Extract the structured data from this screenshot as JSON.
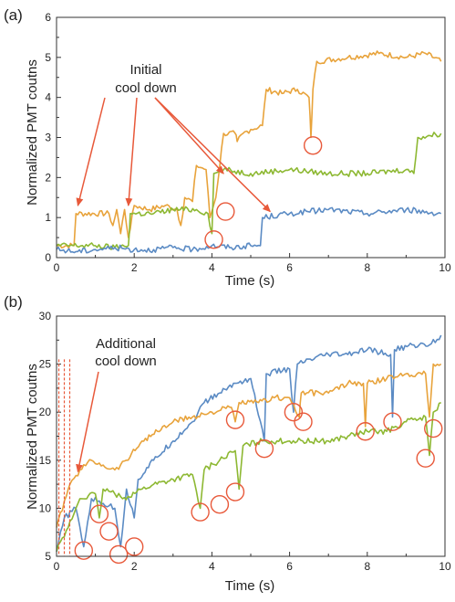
{
  "chart_data": [
    {
      "type": "line",
      "panel_label": "(a)",
      "xlabel": "Time (s)",
      "ylabel": "Normalized PMT coutns",
      "xlim": [
        0,
        10
      ],
      "ylim": [
        0,
        6
      ],
      "x_ticks": [
        "0",
        "2",
        "4",
        "6",
        "8",
        "10"
      ],
      "y_ticks": [
        "0",
        "1",
        "2",
        "3",
        "4",
        "5",
        "6"
      ],
      "annotation": {
        "text_lines": [
          "Initial",
          "cool down"
        ]
      },
      "series": [
        {
          "color": "#E8A33B",
          "points": [
            [
              0,
              0.3
            ],
            [
              0.45,
              0.3
            ],
            [
              0.5,
              1.1
            ],
            [
              1.35,
              1.1
            ],
            [
              1.45,
              0.8
            ],
            [
              1.55,
              1.2
            ],
            [
              1.65,
              0.6
            ],
            [
              1.75,
              1.2
            ],
            [
              1.85,
              0.5
            ],
            [
              2.0,
              1.3
            ],
            [
              2.4,
              1.2
            ],
            [
              2.8,
              1.3
            ],
            [
              3.1,
              1.2
            ],
            [
              3.2,
              0.8
            ],
            [
              3.3,
              1.5
            ],
            [
              3.5,
              1.4
            ],
            [
              3.6,
              2.3
            ],
            [
              3.85,
              2.2
            ],
            [
              3.95,
              1.0
            ],
            [
              4.1,
              1.5
            ],
            [
              4.3,
              3.1
            ],
            [
              4.6,
              3.1
            ],
            [
              4.65,
              2.9
            ],
            [
              4.8,
              3.1
            ],
            [
              5.0,
              3.2
            ],
            [
              5.3,
              3.3
            ],
            [
              5.4,
              4.2
            ],
            [
              5.8,
              4.1
            ],
            [
              6.2,
              4.2
            ],
            [
              6.5,
              4.0
            ],
            [
              6.55,
              3.0
            ],
            [
              6.6,
              4.2
            ],
            [
              6.7,
              4.9
            ],
            [
              7.5,
              5.0
            ],
            [
              8.3,
              5.1
            ],
            [
              9.0,
              5.0
            ],
            [
              9.5,
              5.1
            ],
            [
              9.9,
              4.9
            ]
          ]
        },
        {
          "color": "#8DB832",
          "points": [
            [
              0,
              0.3
            ],
            [
              1.0,
              0.3
            ],
            [
              1.5,
              0.25
            ],
            [
              1.85,
              0.3
            ],
            [
              1.9,
              1.1
            ],
            [
              2.5,
              1.1
            ],
            [
              3.0,
              1.2
            ],
            [
              3.6,
              1.2
            ],
            [
              3.9,
              1.1
            ],
            [
              4.0,
              0.6
            ],
            [
              4.05,
              2.1
            ],
            [
              4.3,
              2.2
            ],
            [
              5.0,
              2.1
            ],
            [
              6.0,
              2.2
            ],
            [
              7.0,
              2.1
            ],
            [
              8.0,
              2.1
            ],
            [
              9.0,
              2.2
            ],
            [
              9.2,
              2.1
            ],
            [
              9.3,
              3.0
            ],
            [
              9.9,
              3.1
            ]
          ]
        },
        {
          "color": "#5B8BC4",
          "points": [
            [
              0,
              0.2
            ],
            [
              0.5,
              0.15
            ],
            [
              1.0,
              0.2
            ],
            [
              1.5,
              0.25
            ],
            [
              2.0,
              0.2
            ],
            [
              2.5,
              0.2
            ],
            [
              3.0,
              0.25
            ],
            [
              3.5,
              0.2
            ],
            [
              4.0,
              0.3
            ],
            [
              4.5,
              0.25
            ],
            [
              5.0,
              0.3
            ],
            [
              5.25,
              0.3
            ],
            [
              5.3,
              1.0
            ],
            [
              6.0,
              1.1
            ],
            [
              7.0,
              1.2
            ],
            [
              8.0,
              1.1
            ],
            [
              9.0,
              1.2
            ],
            [
              9.9,
              1.1
            ]
          ]
        }
      ],
      "circles": [
        [
          4.35,
          1.15
        ],
        [
          4.05,
          0.45
        ],
        [
          6.6,
          2.8
        ]
      ],
      "arrows": [
        [
          0.55,
          1.3
        ],
        [
          1.85,
          1.3
        ],
        [
          4.3,
          2.1
        ],
        [
          5.5,
          1.15
        ]
      ]
    },
    {
      "type": "line",
      "panel_label": "(b)",
      "xlabel": "Time (s)",
      "ylabel": "Normalized PMT coutns",
      "xlim": [
        0,
        10
      ],
      "ylim": [
        5,
        30
      ],
      "x_ticks": [
        "0",
        "2",
        "4",
        "6",
        "8",
        "10"
      ],
      "y_ticks": [
        "5",
        "10",
        "15",
        "20",
        "25",
        "30"
      ],
      "annotation": {
        "text_lines": [
          "Additional",
          "cool down"
        ]
      },
      "series": [
        {
          "color": "#5B8BC4",
          "points": [
            [
              0,
              5.5
            ],
            [
              0.2,
              9
            ],
            [
              0.5,
              10
            ],
            [
              0.7,
              6
            ],
            [
              0.9,
              11
            ],
            [
              1.2,
              10.5
            ],
            [
              1.5,
              10
            ],
            [
              1.65,
              6
            ],
            [
              1.8,
              12
            ],
            [
              2.0,
              9
            ],
            [
              2.1,
              13
            ],
            [
              2.5,
              15
            ],
            [
              3.0,
              17
            ],
            [
              3.5,
              19
            ],
            [
              3.8,
              21
            ],
            [
              4.2,
              22
            ],
            [
              4.6,
              23
            ],
            [
              5.0,
              23.5
            ],
            [
              5.35,
              17
            ],
            [
              5.4,
              24
            ],
            [
              6.0,
              24.5
            ],
            [
              6.1,
              20
            ],
            [
              6.2,
              25
            ],
            [
              7.0,
              26
            ],
            [
              7.5,
              26
            ],
            [
              8.0,
              26.5
            ],
            [
              8.6,
              26
            ],
            [
              8.65,
              19.5
            ],
            [
              8.7,
              26.5
            ],
            [
              9.2,
              27
            ],
            [
              9.6,
              27
            ],
            [
              9.9,
              28
            ]
          ]
        },
        {
          "color": "#E8A33B",
          "points": [
            [
              0,
              8
            ],
            [
              0.3,
              12
            ],
            [
              0.6,
              14
            ],
            [
              0.9,
              15
            ],
            [
              1.2,
              14.5
            ],
            [
              1.5,
              14
            ],
            [
              1.8,
              15
            ],
            [
              2.2,
              17
            ],
            [
              2.6,
              18
            ],
            [
              3.0,
              19
            ],
            [
              3.5,
              19.5
            ],
            [
              4.0,
              20
            ],
            [
              4.5,
              20.5
            ],
            [
              4.6,
              19
            ],
            [
              4.7,
              21
            ],
            [
              5.2,
              21
            ],
            [
              5.6,
              21.5
            ],
            [
              6.0,
              21.5
            ],
            [
              6.25,
              19.5
            ],
            [
              6.3,
              22
            ],
            [
              7.0,
              22
            ],
            [
              7.5,
              23
            ],
            [
              7.9,
              23
            ],
            [
              7.95,
              18.5
            ],
            [
              8.0,
              23
            ],
            [
              8.5,
              23.5
            ],
            [
              9.0,
              24
            ],
            [
              9.5,
              24
            ],
            [
              9.6,
              19.5
            ],
            [
              9.7,
              25
            ],
            [
              9.9,
              25
            ]
          ]
        },
        {
          "color": "#8DB832",
          "points": [
            [
              0,
              5.5
            ],
            [
              0.3,
              8
            ],
            [
              0.6,
              11
            ],
            [
              1.0,
              11.5
            ],
            [
              1.1,
              9
            ],
            [
              1.2,
              12
            ],
            [
              1.5,
              11.5
            ],
            [
              1.7,
              11
            ],
            [
              2.2,
              12
            ],
            [
              2.5,
              12.5
            ],
            [
              3.0,
              13
            ],
            [
              3.5,
              13.5
            ],
            [
              3.7,
              10
            ],
            [
              3.8,
              14
            ],
            [
              4.2,
              15
            ],
            [
              4.6,
              16
            ],
            [
              4.7,
              12
            ],
            [
              4.8,
              16.5
            ],
            [
              5.3,
              17
            ],
            [
              6.0,
              17
            ],
            [
              7.0,
              17
            ],
            [
              7.5,
              17.5
            ],
            [
              8.0,
              18
            ],
            [
              8.5,
              18
            ],
            [
              9.0,
              19
            ],
            [
              9.5,
              19.5
            ],
            [
              9.6,
              15.5
            ],
            [
              9.7,
              20
            ],
            [
              9.9,
              21
            ]
          ]
        }
      ],
      "circles": [
        [
          0.7,
          5.6
        ],
        [
          1.1,
          9.4
        ],
        [
          1.35,
          7.6
        ],
        [
          1.6,
          5.2
        ],
        [
          2.0,
          6.0
        ],
        [
          3.7,
          9.6
        ],
        [
          4.2,
          10.4
        ],
        [
          4.6,
          11.7
        ],
        [
          4.6,
          19.2
        ],
        [
          5.35,
          16.2
        ],
        [
          6.1,
          20.0
        ],
        [
          6.35,
          19.0
        ],
        [
          7.95,
          18.0
        ],
        [
          8.65,
          19.0
        ],
        [
          9.5,
          15.2
        ],
        [
          9.7,
          18.3
        ]
      ],
      "arrows": [
        [
          0.55,
          13.8
        ]
      ],
      "dashed_x": [
        0.06,
        0.2,
        0.34
      ]
    }
  ]
}
